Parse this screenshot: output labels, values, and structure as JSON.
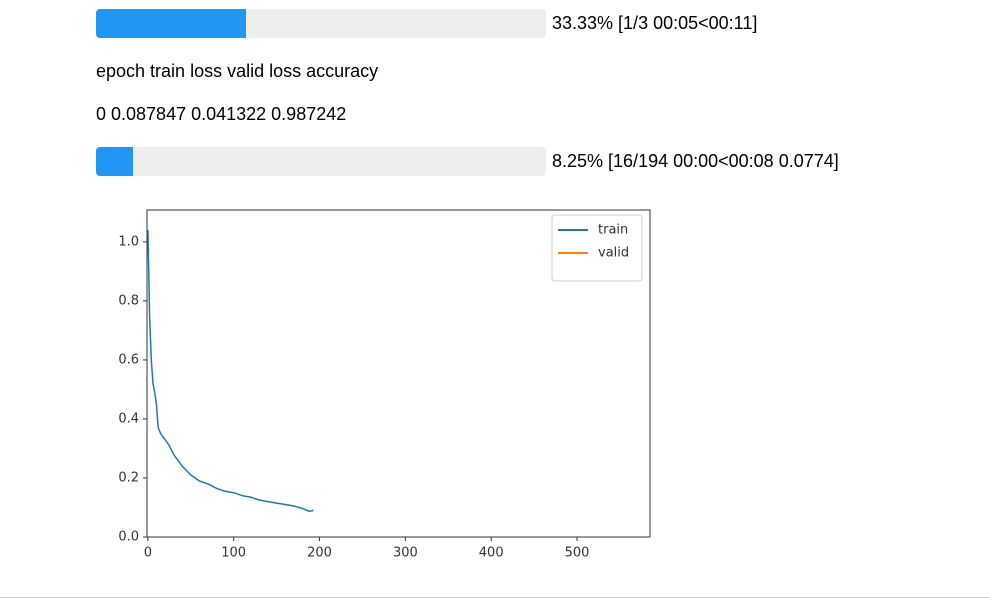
{
  "progress_bars": [
    {
      "value": 33.33,
      "label": "33.33% [1/3 00:05<00:11]"
    },
    {
      "value": 8.25,
      "label": "8.25% [16/194 00:00<00:08 0.0774]"
    }
  ],
  "table": {
    "header": [
      "epoch",
      "train loss",
      "valid loss",
      "accuracy"
    ],
    "rows": [
      [
        "0",
        "0.087847",
        "0.041322",
        "0.987242"
      ]
    ]
  },
  "chart_data": {
    "type": "line",
    "series": [
      {
        "name": "train",
        "color": "#1f77b4",
        "x": [
          0,
          2,
          4,
          6,
          8,
          10,
          12,
          15,
          20,
          25,
          30,
          35,
          40,
          50,
          60,
          70,
          80,
          90,
          100,
          110,
          120,
          130,
          140,
          150,
          160,
          170,
          180,
          188,
          193
        ],
        "values": [
          1.04,
          0.75,
          0.6,
          0.52,
          0.49,
          0.45,
          0.37,
          0.35,
          0.33,
          0.31,
          0.28,
          0.26,
          0.24,
          0.21,
          0.19,
          0.18,
          0.165,
          0.155,
          0.15,
          0.14,
          0.135,
          0.125,
          0.12,
          0.115,
          0.11,
          0.105,
          0.097,
          0.087,
          0.09
        ]
      },
      {
        "name": "valid",
        "color": "#ff7f0e",
        "x": [],
        "values": []
      }
    ],
    "xlim": [
      -1,
      585
    ],
    "ylim": [
      0,
      1.108
    ],
    "xticks": [
      0,
      100,
      200,
      300,
      400,
      500
    ],
    "yticks": [
      {
        "value": 0,
        "label": "0.0"
      },
      0.2,
      0.4,
      0.6,
      0.8,
      {
        "value": 1,
        "label": "1.0"
      }
    ],
    "legend": "upper right"
  }
}
